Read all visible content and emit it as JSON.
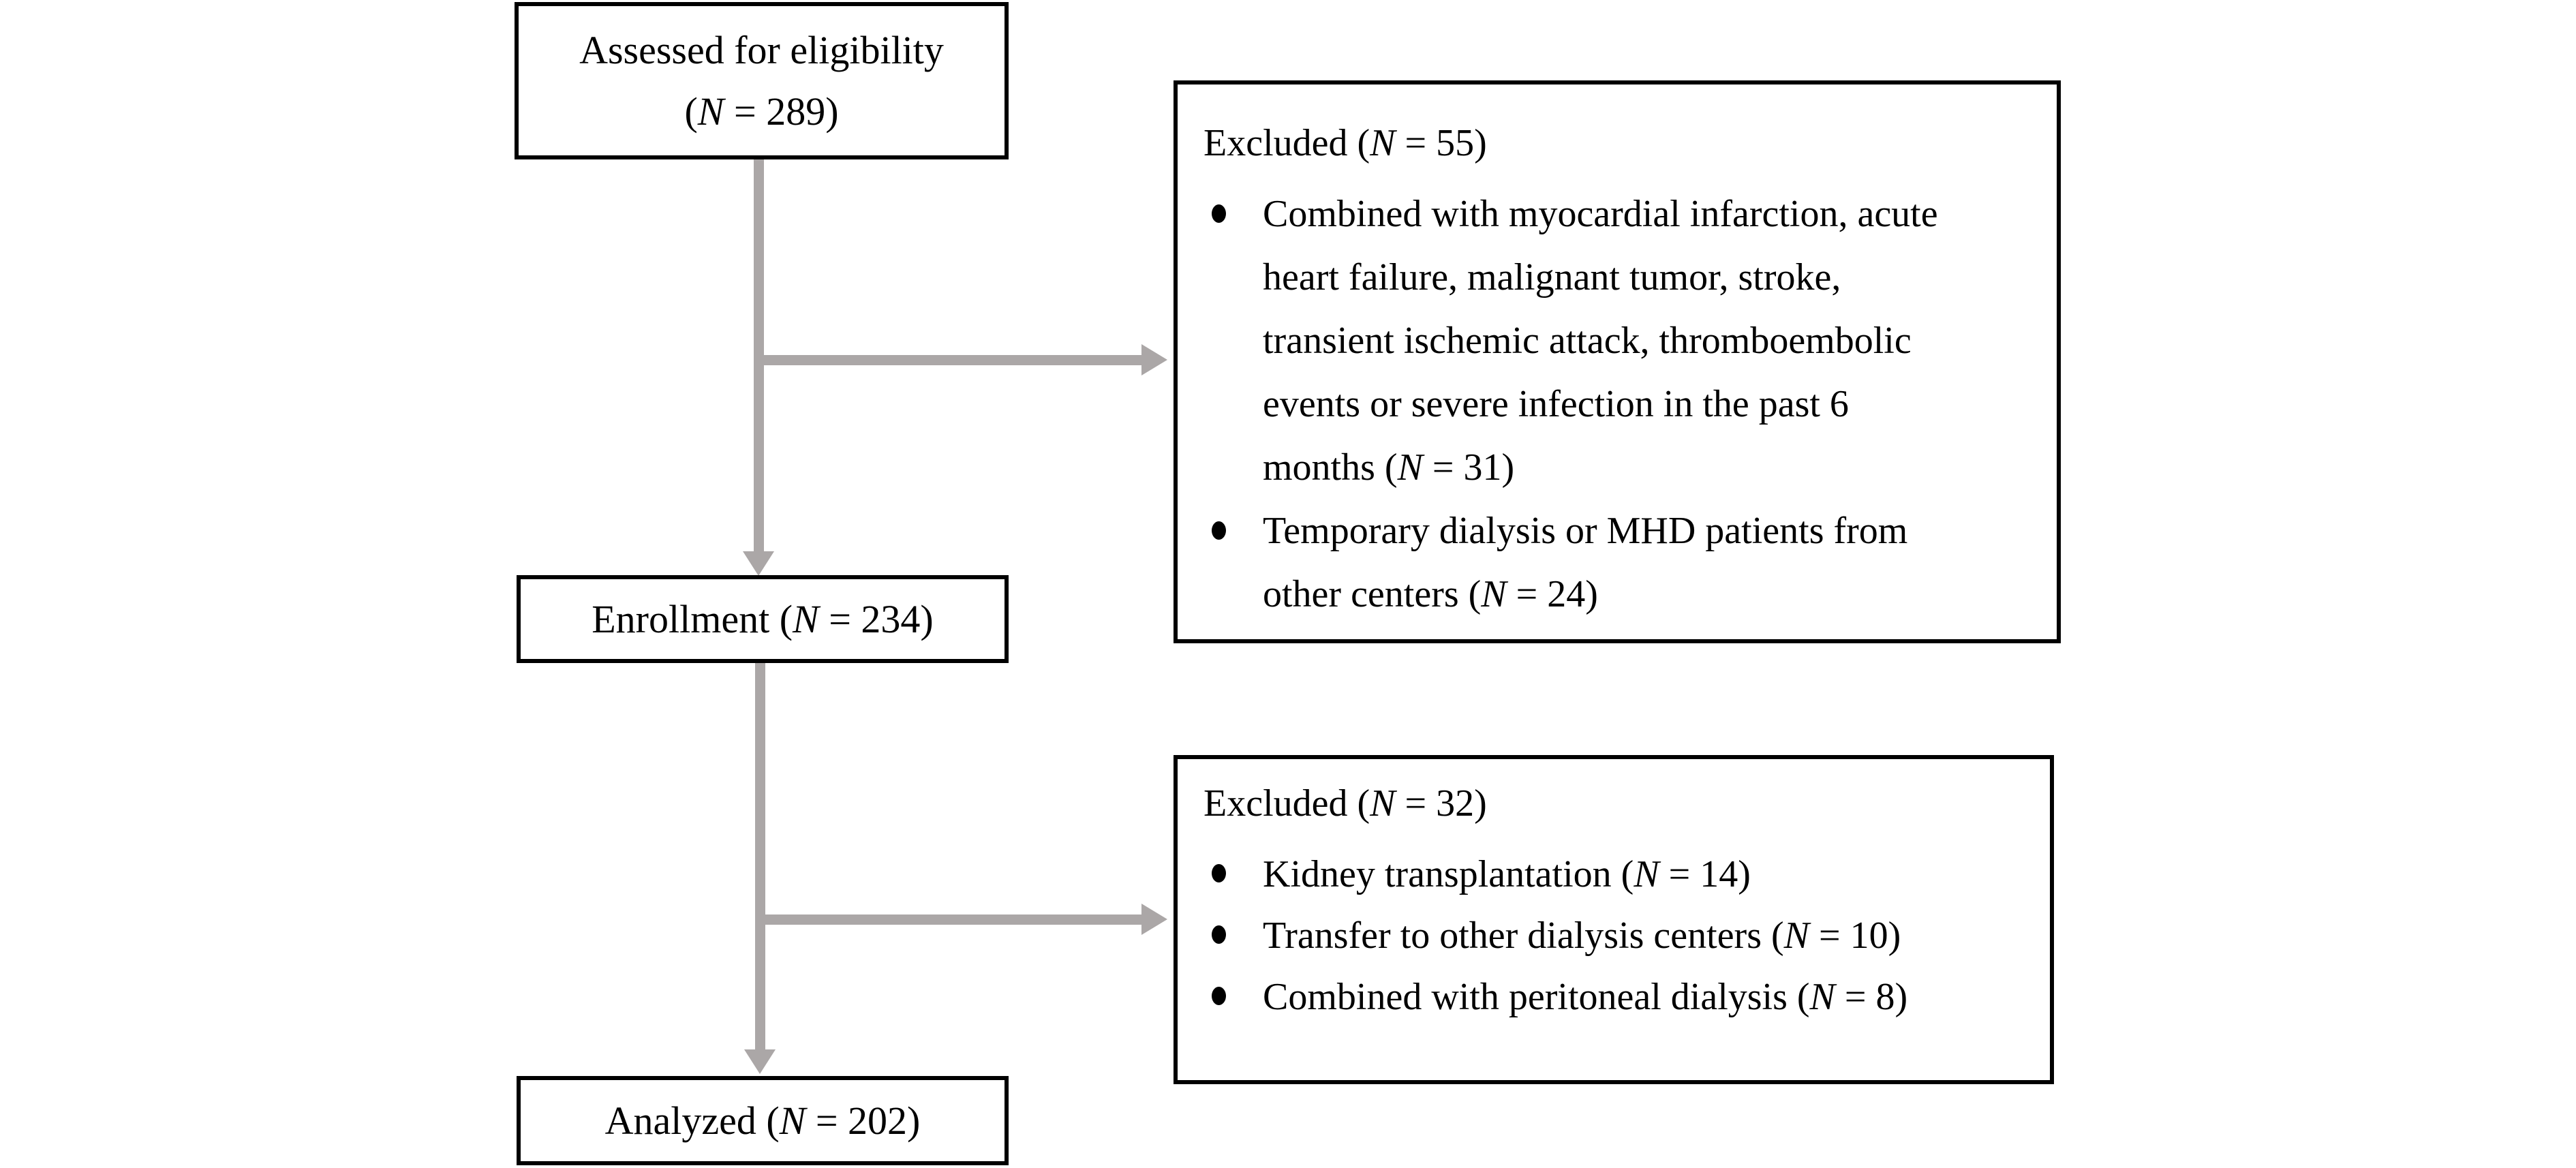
{
  "diagram": {
    "type": "flowchart",
    "colors": {
      "background": "#ffffff",
      "box_border": "#000000",
      "text": "#000000",
      "arrow": "#aba7a7"
    },
    "boxes": {
      "assessed": {
        "lines": [
          "Assessed for eligibility",
          "(N = 289)"
        ]
      },
      "excluded_primary": {
        "title": "Excluded (N = 55)",
        "items": [
          {
            "lines": [
              "Combined with myocardial infarction, acute",
              "heart failure, malignant tumor, stroke,",
              "transient ischemic attack, thromboembolic",
              "events or severe infection in the past 6",
              "months (N = 31)"
            ]
          },
          {
            "lines": [
              "Temporary dialysis or MHD patients from",
              "other centers (N = 24)"
            ]
          }
        ]
      },
      "enrollment": {
        "label": "Enrollment (N = 234)"
      },
      "excluded_secondary": {
        "title": "Excluded (N = 32)",
        "items": [
          {
            "lines": [
              "Kidney transplantation (N = 14)"
            ]
          },
          {
            "lines": [
              "Transfer to other dialysis centers (N = 10)"
            ]
          },
          {
            "lines": [
              "Combined with peritoneal dialysis (N = 8)"
            ]
          }
        ]
      },
      "analyzed": {
        "label": "Analyzed (N = 202)"
      }
    }
  }
}
